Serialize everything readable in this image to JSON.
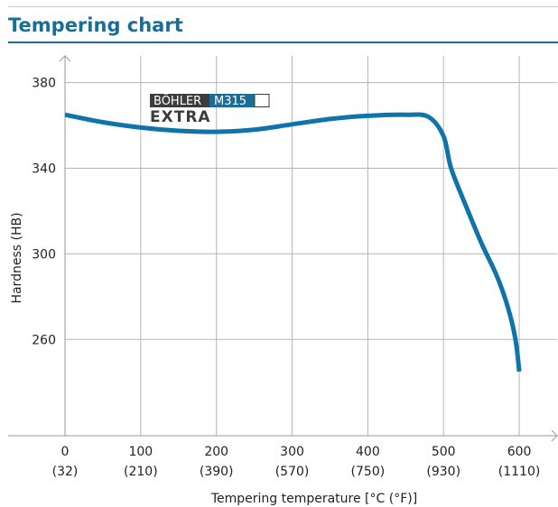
{
  "header": {
    "title": "Tempering chart"
  },
  "logo": {
    "text_brand": "BÖHLER",
    "text_grade": "M315",
    "text_sub": "EXTRA",
    "color_dark": "#3c3c3c",
    "color_accent": "#1a6d94"
  },
  "chart_data": {
    "type": "line",
    "title": "Tempering chart",
    "xlabel": "Tempering temperature [°C (°F)]",
    "ylabel": "Hardness (HB)",
    "xlim": [
      0,
      650
    ],
    "ylim": [
      215,
      395
    ],
    "grid": true,
    "x_ticks": [
      {
        "value": 0,
        "label": "0",
        "sub": "(32)"
      },
      {
        "value": 100,
        "label": "100",
        "sub": "(210)"
      },
      {
        "value": 200,
        "label": "200",
        "sub": "(390)"
      },
      {
        "value": 300,
        "label": "300",
        "sub": "(570)"
      },
      {
        "value": 400,
        "label": "400",
        "sub": "(750)"
      },
      {
        "value": 500,
        "label": "500",
        "sub": "(930)"
      },
      {
        "value": 600,
        "label": "600",
        "sub": "(1110)"
      }
    ],
    "y_ticks": [
      {
        "value": 260,
        "label": "260"
      },
      {
        "value": 300,
        "label": "300"
      },
      {
        "value": 340,
        "label": "340"
      },
      {
        "value": 380,
        "label": "380"
      }
    ],
    "series": [
      {
        "color": "#0e74aa",
        "x": [
          0,
          50,
          100,
          150,
          200,
          250,
          300,
          350,
          400,
          450,
          480,
          500,
          510,
          530,
          550,
          570,
          585,
          595,
          600
        ],
        "y": [
          365,
          361.5,
          359,
          357.5,
          357,
          358,
          360.5,
          363,
          364.5,
          365,
          364,
          355,
          340,
          322,
          305,
          290,
          275,
          260,
          245
        ]
      }
    ]
  }
}
